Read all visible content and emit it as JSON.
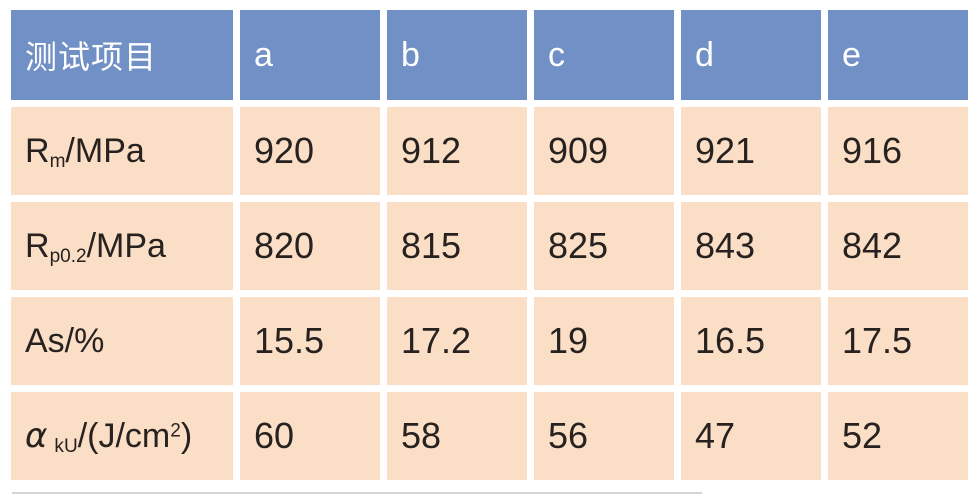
{
  "table": {
    "header": {
      "label": "测试项目",
      "columns": [
        "a",
        "b",
        "c",
        "d",
        "e"
      ]
    },
    "rows": [
      {
        "name": "Rm/MPa",
        "label_parts": [
          {
            "text": "R",
            "style": "normal"
          },
          {
            "text": "m",
            "style": "sub"
          },
          {
            "text": "/MPa",
            "style": "normal"
          }
        ],
        "values": [
          "920",
          "912",
          "909",
          "921",
          "916"
        ]
      },
      {
        "name": "Rp0.2/MPa",
        "label_parts": [
          {
            "text": "R",
            "style": "normal"
          },
          {
            "text": "p0.2",
            "style": "sub"
          },
          {
            "text": "/MPa",
            "style": "normal"
          }
        ],
        "values": [
          "820",
          "815",
          "825",
          "843",
          "842"
        ]
      },
      {
        "name": "As/%",
        "label_parts": [
          {
            "text": "As/%",
            "style": "normal"
          }
        ],
        "values": [
          "15.5",
          "17.2",
          "19",
          "16.5",
          "17.5"
        ]
      },
      {
        "name": "akU/(J/cm2)",
        "label_parts": [
          {
            "text": "α",
            "style": "italic"
          },
          {
            "text": "kU",
            "style": "sub"
          },
          {
            "text": "/(J/cm",
            "style": "normal"
          },
          {
            "text": "2",
            "style": "sup"
          },
          {
            "text": ")",
            "style": "normal"
          }
        ],
        "values": [
          "60",
          "58",
          "56",
          "47",
          "52"
        ]
      }
    ]
  },
  "colors": {
    "header_bg": "#7190c6",
    "header_text": "#ffffff",
    "cell_bg": "#fbdec6",
    "cell_text": "#272220",
    "page_bg": "#ffffff"
  },
  "chart_data": {
    "type": "table",
    "title": "",
    "columns": [
      "测试项目",
      "a",
      "b",
      "c",
      "d",
      "e"
    ],
    "rows": [
      [
        "Rm/MPa",
        920,
        912,
        909,
        921,
        916
      ],
      [
        "Rp0.2/MPa",
        820,
        815,
        825,
        843,
        842
      ],
      [
        "As/%",
        15.5,
        17.2,
        19,
        16.5,
        17.5
      ],
      [
        "αkU/(J/cm2)",
        60,
        58,
        56,
        47,
        52
      ]
    ]
  }
}
